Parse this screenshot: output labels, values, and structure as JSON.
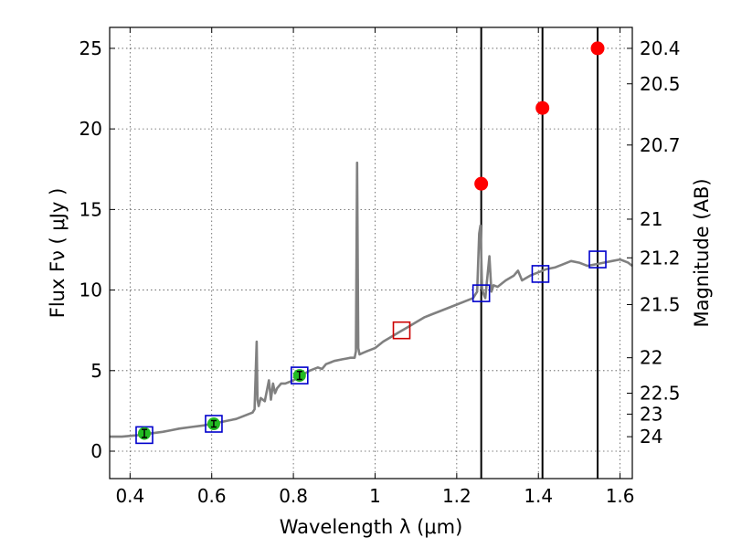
{
  "chart_data": {
    "type": "line",
    "xlabel": "Wavelength  λ (μm)",
    "ylabel": "Flux  Fν  ( μJy )",
    "ylabel_right": "Magnitude (AB)",
    "xlim": [
      0.35,
      1.63
    ],
    "ylim": [
      -1.7,
      26.3
    ],
    "grid": true,
    "x_ticks": [
      0.4,
      0.6,
      0.8,
      1.0,
      1.2,
      1.4,
      1.6
    ],
    "x_tick_labels": [
      "0.4",
      "0.6",
      "0.8",
      "1",
      "1.2",
      "1.4",
      "1.6"
    ],
    "y_ticks": [
      0,
      5,
      10,
      15,
      20,
      25
    ],
    "y_tick_labels": [
      "0",
      "5",
      "10",
      "15",
      "20",
      "25"
    ],
    "right_ticks": [
      {
        "label": "20.4",
        "flux": 25.0
      },
      {
        "label": "20.5",
        "flux": 22.8
      },
      {
        "label": "20.7",
        "flux": 19.0
      },
      {
        "label": "21",
        "flux": 14.4
      },
      {
        "label": "21.2",
        "flux": 12.0
      },
      {
        "label": "21.5",
        "flux": 9.1
      },
      {
        "label": "22",
        "flux": 5.8
      },
      {
        "label": "22.5",
        "flux": 3.6
      },
      {
        "label": "23",
        "flux": 2.3
      },
      {
        "label": "24",
        "flux": 0.9
      }
    ],
    "vertical_lines_x": [
      1.26,
      1.41,
      1.545
    ],
    "colors": {
      "spectrum": "#808080",
      "model_box": "#0000cc",
      "highlight_box": "#cc0000",
      "observed_point": "#22bb22",
      "upper_point": "#ff0000",
      "vline": "#000000"
    },
    "series": [
      {
        "type": "spectrum",
        "x": [
          0.35,
          0.38,
          0.42,
          0.45,
          0.48,
          0.5,
          0.52,
          0.55,
          0.58,
          0.6,
          0.62,
          0.64,
          0.66,
          0.68,
          0.7,
          0.705,
          0.71,
          0.712,
          0.715,
          0.72,
          0.73,
          0.74,
          0.745,
          0.75,
          0.755,
          0.76,
          0.77,
          0.78,
          0.8,
          0.82,
          0.84,
          0.86,
          0.87,
          0.88,
          0.89,
          0.9,
          0.92,
          0.94,
          0.95,
          0.953,
          0.956,
          0.959,
          0.962,
          0.97,
          0.98,
          1.0,
          1.02,
          1.04,
          1.06,
          1.08,
          1.1,
          1.12,
          1.14,
          1.16,
          1.18,
          1.2,
          1.22,
          1.24,
          1.25,
          1.255,
          1.258,
          1.262,
          1.265,
          1.27,
          1.28,
          1.285,
          1.29,
          1.3,
          1.32,
          1.34,
          1.35,
          1.36,
          1.38,
          1.4,
          1.42,
          1.44,
          1.46,
          1.48,
          1.5,
          1.52,
          1.54,
          1.56,
          1.58,
          1.6,
          1.62,
          1.63
        ],
        "y": [
          0.9,
          0.9,
          1.0,
          1.1,
          1.2,
          1.3,
          1.4,
          1.5,
          1.6,
          1.7,
          1.8,
          1.9,
          2.0,
          2.2,
          2.4,
          2.6,
          6.8,
          3.2,
          2.8,
          3.3,
          3.1,
          4.4,
          3.2,
          4.2,
          3.6,
          3.9,
          4.2,
          4.2,
          4.4,
          4.7,
          5.0,
          5.2,
          5.1,
          5.4,
          5.5,
          5.6,
          5.7,
          5.8,
          5.8,
          6.2,
          17.9,
          6.4,
          6.0,
          6.1,
          6.2,
          6.4,
          6.8,
          7.1,
          7.4,
          7.7,
          8.0,
          8.3,
          8.5,
          8.7,
          8.9,
          9.1,
          9.3,
          9.5,
          9.9,
          13.5,
          14.0,
          10.1,
          9.8,
          9.5,
          12.1,
          9.9,
          10.3,
          10.2,
          10.6,
          10.9,
          11.2,
          10.6,
          10.9,
          11.1,
          11.3,
          11.4,
          11.6,
          11.8,
          11.7,
          11.5,
          11.6,
          11.7,
          11.8,
          11.9,
          11.7,
          11.5
        ]
      },
      {
        "type": "model_boxes",
        "x": [
          0.435,
          0.605,
          0.815,
          1.065,
          1.26,
          1.405,
          1.545
        ],
        "y": [
          1.0,
          1.7,
          4.7,
          7.5,
          9.8,
          11.0,
          11.9
        ],
        "highlight_index": 3
      },
      {
        "type": "observed_points",
        "x": [
          0.435,
          0.605,
          0.815
        ],
        "y": [
          1.1,
          1.7,
          4.7
        ],
        "err": [
          0.25,
          0.2,
          0.25
        ]
      },
      {
        "type": "upper_points",
        "x": [
          1.26,
          1.41,
          1.545
        ],
        "y": [
          16.6,
          21.3,
          25.0
        ]
      }
    ]
  }
}
